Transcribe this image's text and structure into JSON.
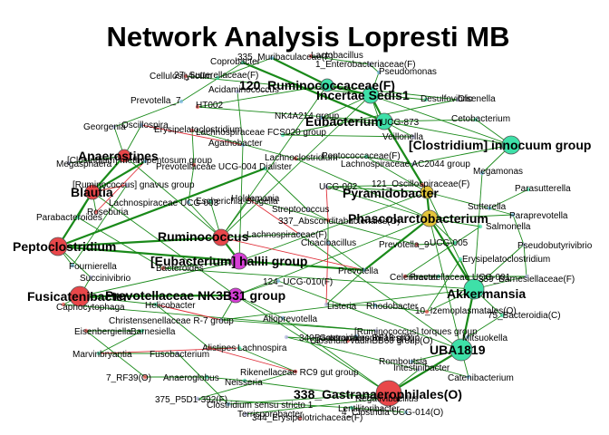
{
  "title": "Network Analysis Lopresti MB",
  "colors": {
    "positive_edge": "#1a8a1a",
    "negative_edge": "#e0303a",
    "red_node": "#e8474a",
    "teal_node": "#3ee0a8",
    "gold_node": "#e2c43a",
    "magenta_node": "#d63fd6",
    "node_outline": "#555555"
  },
  "hubs": [
    {
      "id": "anaerostipes",
      "label": "Anaerostipes",
      "color": "red"
    },
    {
      "id": "blautia",
      "label": "Blautia",
      "color": "red"
    },
    {
      "id": "peptoclostridium",
      "label": "Peptoclostridium",
      "color": "red"
    },
    {
      "id": "fusicatenibacter",
      "label": "Fusicatenibacter",
      "color": "red"
    },
    {
      "id": "ruminococcus",
      "label": "Ruminococcus",
      "color": "red"
    },
    {
      "id": "eubacterium-hallii",
      "label": "[Eubacterium] hallii group",
      "color": "magenta"
    },
    {
      "id": "prevotellaceae-nk3b31",
      "label": "Prevotellaceae NK3B31 group",
      "color": "magenta"
    },
    {
      "id": "ruminococcaceae-120",
      "label": "120_Ruminococcaceae(F)",
      "color": "teal"
    },
    {
      "id": "incertae-sedis",
      "label": "Incertae Sedis1",
      "color": "teal"
    },
    {
      "id": "eubacterium",
      "label": "Eubacterium",
      "color": "teal"
    },
    {
      "id": "clostridium-innocuum",
      "label": "[Clostridium] innocuum group",
      "color": "teal"
    },
    {
      "id": "pyramidobacter",
      "label": "Pyramidobacter",
      "color": "gold"
    },
    {
      "id": "phascolarctobacterium",
      "label": "Phascolarctobacterium",
      "color": "gold"
    },
    {
      "id": "akkermansia",
      "label": "Akkermansia",
      "color": "teal"
    },
    {
      "id": "uba1819",
      "label": "UBA1819",
      "color": "teal"
    },
    {
      "id": "gastranaerophilales",
      "label": "338_Gastranaerophilales(O)",
      "color": "red"
    }
  ],
  "small_nodes": [
    {
      "label": "335_Muribaculaceae(F)"
    },
    {
      "label": "Lactobacillus"
    },
    {
      "label": "Coprobacter"
    },
    {
      "label": "1_Enterobacteriaceae(F)"
    },
    {
      "label": "Pseudomonas"
    },
    {
      "label": "Cellulosilyticum"
    },
    {
      "label": "27_Sutterellaceae(F)"
    },
    {
      "label": "Acidaminococcus"
    },
    {
      "label": "Prevotella_7"
    },
    {
      "label": "HT002"
    },
    {
      "label": "Desulfovibrio"
    },
    {
      "label": "Olsenella"
    },
    {
      "label": "NK4A214 group"
    },
    {
      "label": "UCG-873"
    },
    {
      "label": "Cetobacterium"
    },
    {
      "label": "Georgenia"
    },
    {
      "label": "Oscillospira"
    },
    {
      "label": "Erysipelatoclostridium"
    },
    {
      "label": "Lachnospiraceae FCS020 group"
    },
    {
      "label": "Veillonella"
    },
    {
      "label": "Agathobacter"
    },
    {
      "label": "Lachnoclostridium"
    },
    {
      "label": "Peptococcaceae(F)"
    },
    {
      "label": "Megasphaera"
    },
    {
      "label": "[Clostridium] methylpentosum group"
    },
    {
      "label": "Prevotellaceae UCG-004"
    },
    {
      "label": "Dialister"
    },
    {
      "label": "Lachnospiraceae AC2044 group"
    },
    {
      "label": "Megamonas"
    },
    {
      "label": "121_Oscillospiraceae(F)"
    },
    {
      "label": "Parasutterella"
    },
    {
      "label": "[Ruminococcus] gnavus group"
    },
    {
      "label": "Lachnospiraceae UCG-003"
    },
    {
      "label": "Holdemania"
    },
    {
      "label": "Escherichia-Shigella"
    },
    {
      "label": "UCG-002"
    },
    {
      "label": "Sutterella"
    },
    {
      "label": "Roseburia"
    },
    {
      "label": "Parabacteroides"
    },
    {
      "label": "Streptococcus"
    },
    {
      "label": "Paraprevotella"
    },
    {
      "label": "337_Absconditabacteriales(O)"
    },
    {
      "label": "Salmonella"
    },
    {
      "label": "Lachnospiraceae(F)"
    },
    {
      "label": "Cloacibacillus"
    },
    {
      "label": "Prevotella_9"
    },
    {
      "label": "UCG-005"
    },
    {
      "label": "Pseudobutyrivibrio"
    },
    {
      "label": "Fournierella"
    },
    {
      "label": "Bacteroides"
    },
    {
      "label": "Erysipelatoclostridium"
    },
    {
      "label": "Succinivibrio"
    },
    {
      "label": "Prevotella"
    },
    {
      "label": "Celeribacter"
    },
    {
      "label": "Prevotellaceae UCG-001"
    },
    {
      "label": "359_Barnesiellaceae(F)"
    },
    {
      "label": "124_UCG-010(F)"
    },
    {
      "label": "Capnocytophaga"
    },
    {
      "label": "Helicobacter"
    },
    {
      "label": "Listeria"
    },
    {
      "label": "Rhodobacter"
    },
    {
      "label": "10_Izemoplasmatales(O)"
    },
    {
      "label": "75_Bacteroidia(C)"
    },
    {
      "label": "Christensenellaceae R-7 group"
    },
    {
      "label": "Alloprevotella"
    },
    {
      "label": "Eisenbergiella"
    },
    {
      "label": "Barnesiella"
    },
    {
      "label": "[Ruminococcus] torques group"
    },
    {
      "label": "Bacteroidales RF16 group"
    },
    {
      "label": "Clostridia vadinBB60 group(O)"
    },
    {
      "label": "Marvinbryantia"
    },
    {
      "label": "340_Gastranaerophilales(O)"
    },
    {
      "label": "Mitsuokella"
    },
    {
      "label": "Alistipes"
    },
    {
      "label": "Lachnospira"
    },
    {
      "label": "Fusobacterium"
    },
    {
      "label": "Romboutsia"
    },
    {
      "label": "7_RF39(O)"
    },
    {
      "label": "Anaeroglobus"
    },
    {
      "label": "Intestinibacter"
    },
    {
      "label": "Catenibacterium"
    },
    {
      "label": "Rikenellaceae RC9 gut group"
    },
    {
      "label": "Neisseria"
    },
    {
      "label": "375_P5D1-392(F)"
    },
    {
      "label": "Clostridium sensu stricto 1"
    },
    {
      "label": "Negativibacillus"
    },
    {
      "label": "Lentilitoribacter"
    },
    {
      "label": "Terrisporobacter"
    },
    {
      "label": "4_Clostridia UCG-014(O)"
    },
    {
      "label": "344_Erysipelotrichaceae(F)"
    }
  ]
}
